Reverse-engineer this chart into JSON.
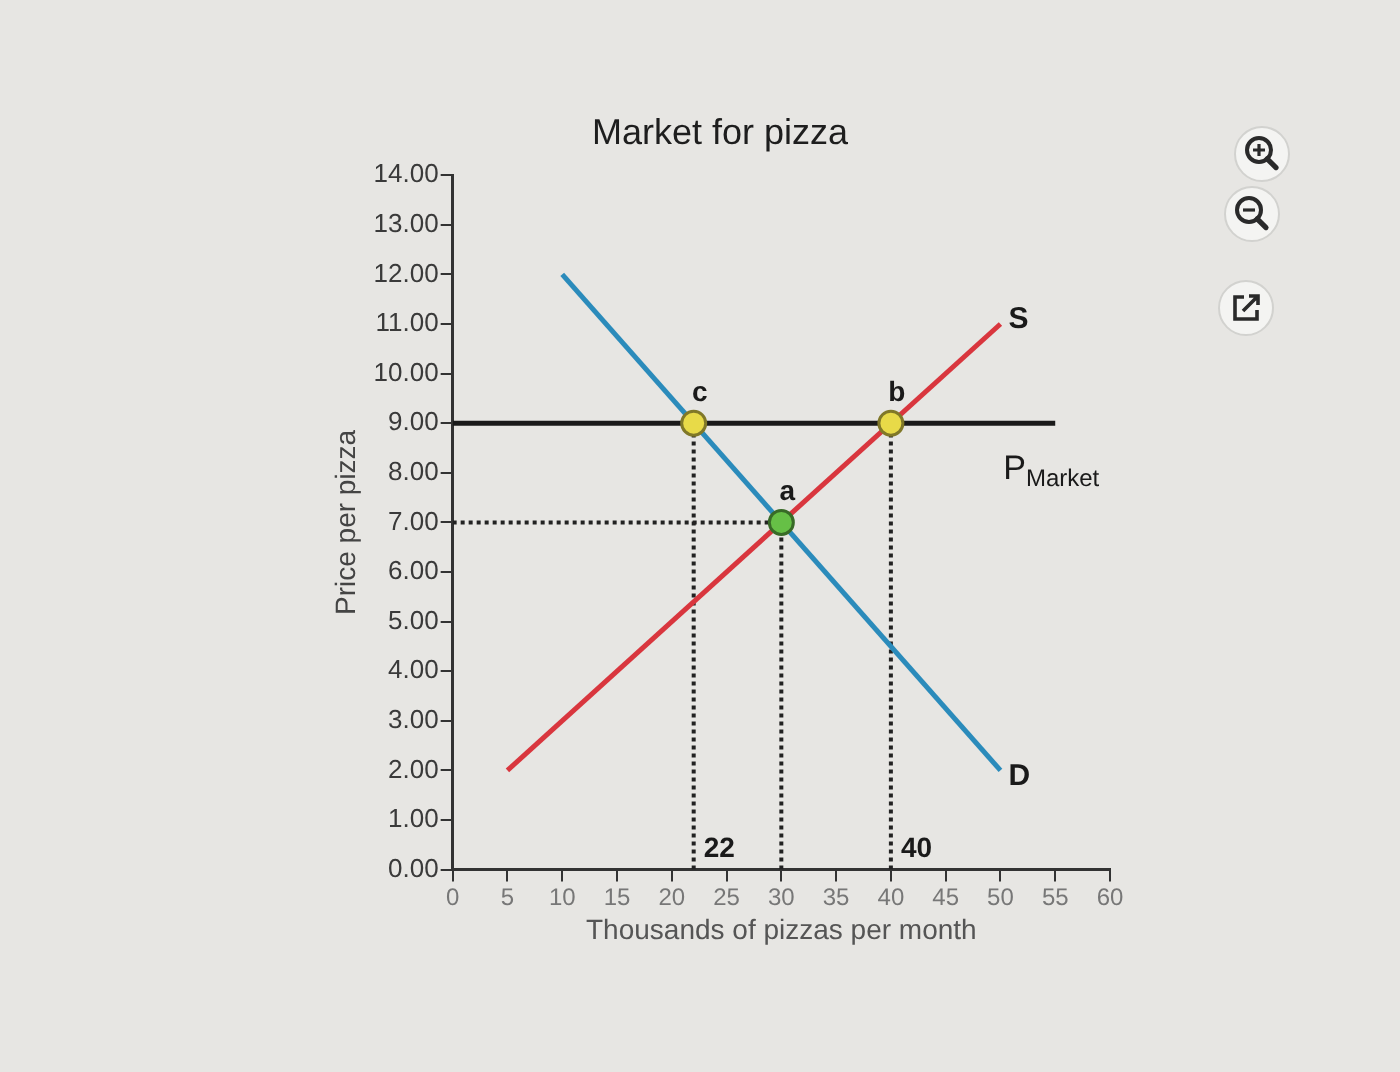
{
  "chart_data": {
    "type": "line",
    "title": "Market for pizza",
    "xlabel": "Thousands of pizzas per month",
    "ylabel": "Price per pizza",
    "xlim": [
      0,
      60
    ],
    "xticks": [
      0,
      5,
      10,
      15,
      20,
      25,
      30,
      35,
      40,
      45,
      50,
      55,
      60
    ],
    "ylim": [
      0,
      14
    ],
    "yticks": [
      {
        "value": 0,
        "label": "0.00"
      },
      {
        "value": 1,
        "label": "1.00"
      },
      {
        "value": 2,
        "label": "2.00"
      },
      {
        "value": 3,
        "label": "3.00"
      },
      {
        "value": 4,
        "label": "4.00"
      },
      {
        "value": 5,
        "label": "5.00"
      },
      {
        "value": 6,
        "label": "6.00"
      },
      {
        "value": 7,
        "label": "7.00"
      },
      {
        "value": 8,
        "label": "8.00"
      },
      {
        "value": 9,
        "label": "9.00"
      },
      {
        "value": 10,
        "label": "10.00"
      },
      {
        "value": 11,
        "label": "11.00"
      },
      {
        "value": 12,
        "label": "12.00"
      },
      {
        "value": 13,
        "label": "13.00"
      },
      {
        "value": 14,
        "label": "14.00"
      }
    ],
    "grid": false,
    "legend": false,
    "series": [
      {
        "name": "S",
        "color": "#d9363e",
        "x": [
          5,
          50
        ],
        "values": [
          2,
          11
        ],
        "marker": "none",
        "line_style": "solid"
      },
      {
        "name": "D",
        "color": "#2b8bbb",
        "x": [
          10,
          50
        ],
        "values": [
          12,
          2
        ],
        "marker": "none",
        "line_style": "solid"
      },
      {
        "name": "P$_{Market}$",
        "color": "#1a1a1a",
        "x": [
          0,
          55
        ],
        "values": [
          9,
          9
        ],
        "marker": "none",
        "line_style": "solid"
      },
      {
        "color": "#222222",
        "x": [
          22,
          22
        ],
        "values": [
          0,
          9
        ],
        "marker": "none",
        "line_style": "dotted"
      },
      {
        "color": "#222222",
        "x": [
          30,
          30
        ],
        "values": [
          0,
          7
        ],
        "marker": "none",
        "line_style": "dotted"
      },
      {
        "color": "#222222",
        "x": [
          40,
          40
        ],
        "values": [
          0,
          9
        ],
        "marker": "none",
        "line_style": "dotted"
      },
      {
        "color": "#222222",
        "x": [
          0,
          30
        ],
        "values": [
          7,
          7
        ],
        "marker": "none",
        "line_style": "dotted"
      },
      {
        "type": "scatter",
        "colors": [
          "#e8da48",
          "#e8da48",
          "#66c046"
        ],
        "x": [
          22,
          40,
          30
        ],
        "values": [
          9,
          9,
          7
        ],
        "marker": "circle"
      }
    ],
    "annotations": [
      {
        "text": "c",
        "x": 22,
        "y": 9
      },
      {
        "text": "b",
        "x": 40,
        "y": 9
      },
      {
        "text": "a",
        "x": 30,
        "y": 7
      },
      {
        "text": "22",
        "x": 22,
        "y": 0
      },
      {
        "text": "40",
        "x": 40,
        "y": 0
      }
    ]
  }
}
